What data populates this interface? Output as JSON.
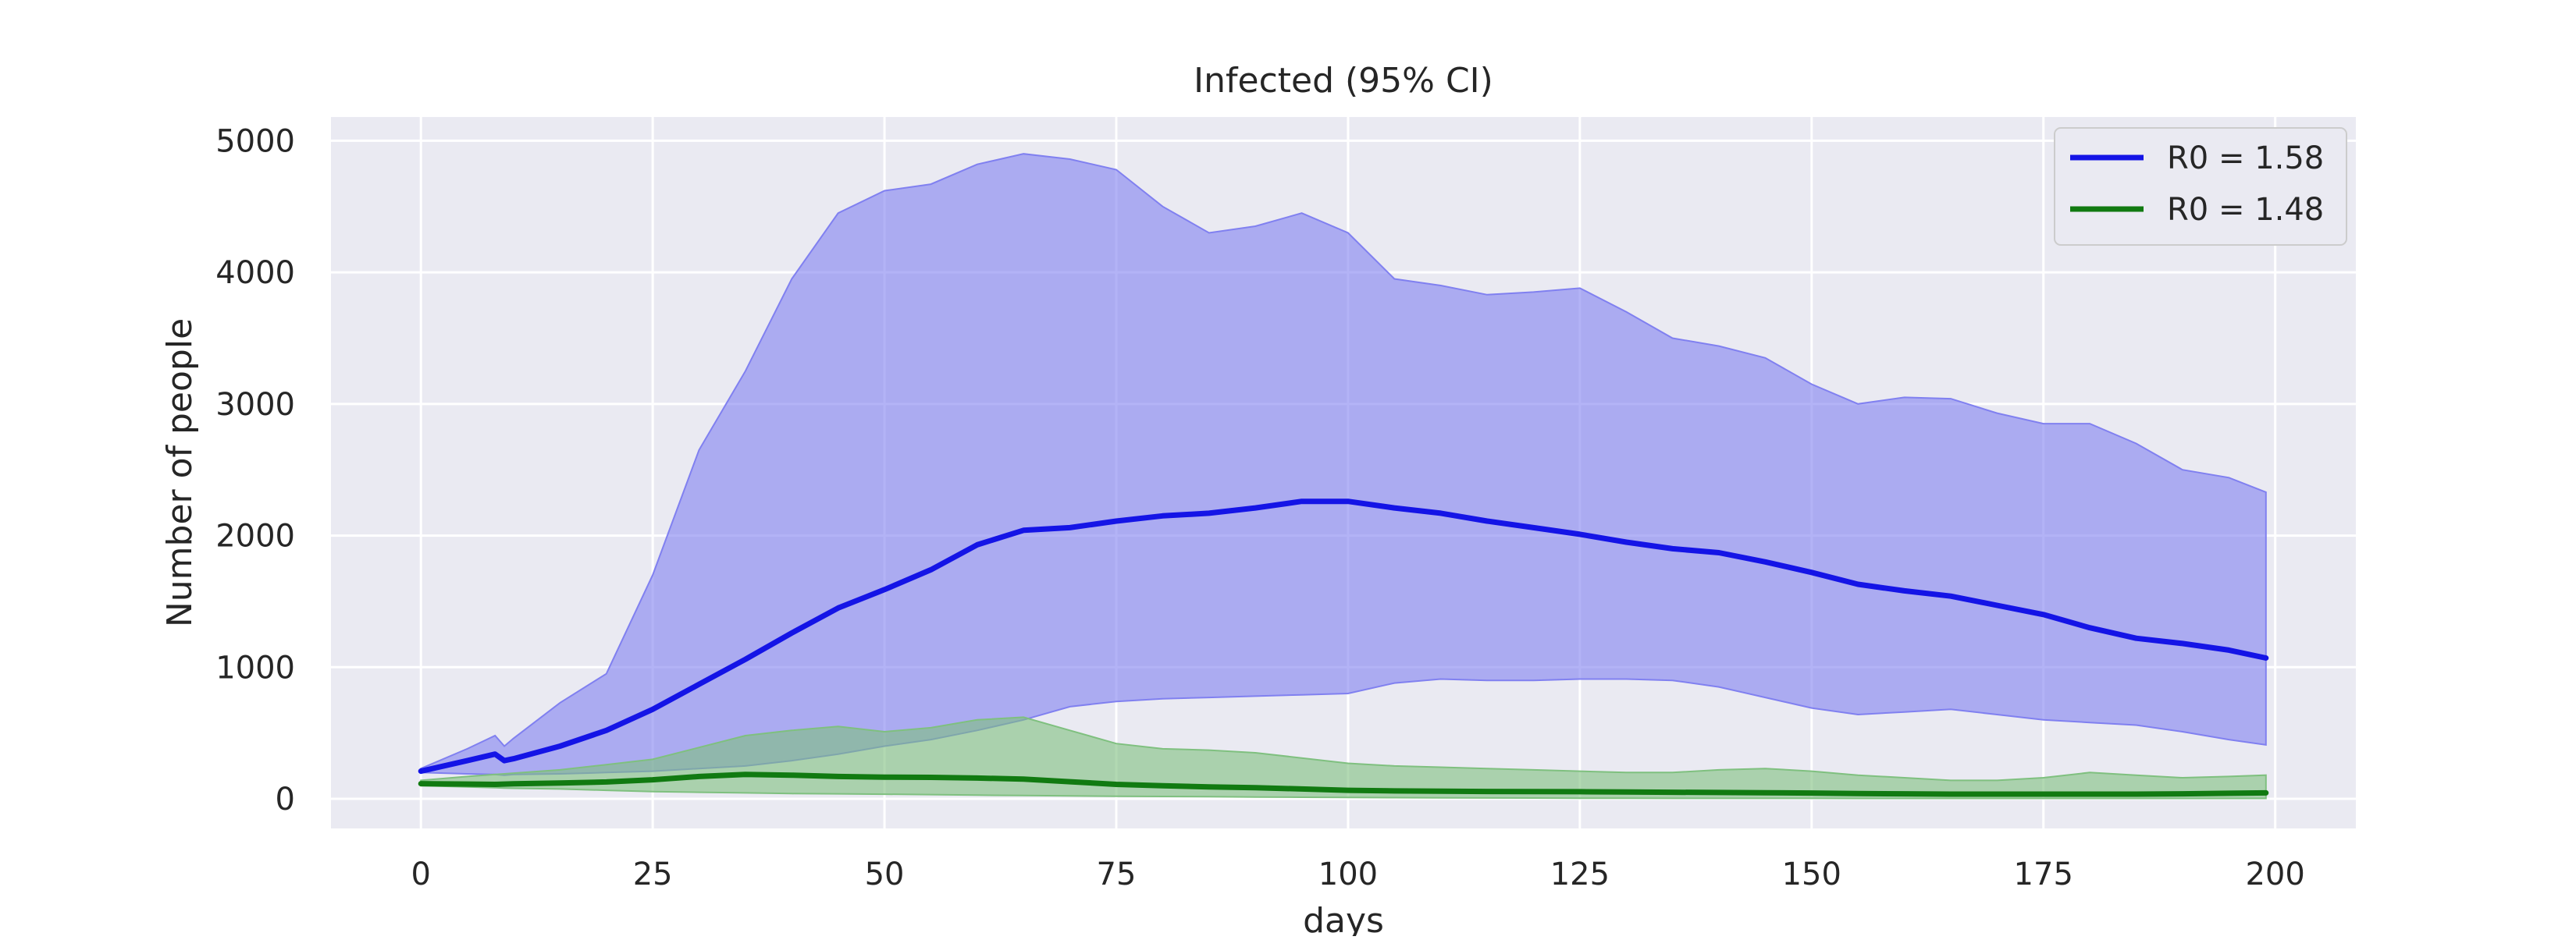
{
  "chart_data": {
    "type": "area",
    "title": "Infected (95% CI)",
    "xlabel": "days",
    "ylabel": "Number of people",
    "xlim": [
      -9.7,
      208.7
    ],
    "ylim": [
      -225,
      5180
    ],
    "xticks": [
      0,
      25,
      50,
      75,
      100,
      125,
      150,
      175,
      200
    ],
    "yticks": [
      0,
      1000,
      2000,
      3000,
      4000,
      5000
    ],
    "grid": true,
    "legend_position": "top-right",
    "background_color": "#eaeaf2",
    "grid_color": "#ffffff",
    "x": [
      0,
      5,
      8,
      9,
      10,
      15,
      20,
      25,
      30,
      35,
      40,
      45,
      50,
      55,
      60,
      65,
      70,
      75,
      80,
      85,
      90,
      95,
      100,
      105,
      110,
      115,
      120,
      125,
      130,
      135,
      140,
      145,
      150,
      155,
      160,
      165,
      170,
      175,
      180,
      185,
      190,
      195,
      199
    ],
    "series": [
      {
        "name": "R0 = 1.58",
        "color": "#1414e6",
        "fill_color": "#8080f0",
        "values": [
          210,
          290,
          340,
          290,
          305,
          400,
          520,
          680,
          870,
          1060,
          1260,
          1450,
          1590,
          1740,
          1930,
          2040,
          2060,
          2110,
          2150,
          2170,
          2210,
          2260,
          2260,
          2210,
          2170,
          2110,
          2060,
          2010,
          1950,
          1900,
          1870,
          1800,
          1720,
          1630,
          1580,
          1540,
          1470,
          1400,
          1300,
          1220,
          1180,
          1130,
          1070
        ],
        "ci_upper": [
          230,
          380,
          480,
          400,
          460,
          730,
          950,
          1700,
          2650,
          3250,
          3950,
          4450,
          4620,
          4670,
          4820,
          4900,
          4860,
          4780,
          4500,
          4300,
          4350,
          4450,
          4300,
          3950,
          3900,
          3830,
          3850,
          3880,
          3700,
          3500,
          3440,
          3350,
          3150,
          3000,
          3050,
          3040,
          2930,
          2850,
          2850,
          2700,
          2500,
          2440,
          2330
        ],
        "ci_lower": [
          200,
          190,
          185,
          180,
          185,
          190,
          200,
          210,
          230,
          250,
          290,
          340,
          400,
          450,
          520,
          600,
          700,
          740,
          760,
          770,
          780,
          790,
          800,
          880,
          910,
          900,
          900,
          910,
          910,
          900,
          850,
          770,
          690,
          640,
          660,
          680,
          640,
          600,
          580,
          560,
          510,
          450,
          410
        ]
      },
      {
        "name": "R0 = 1.48",
        "color": "#117a11",
        "fill_color": "#7fc07f",
        "values": [
          115,
          112,
          110,
          112,
          114,
          120,
          128,
          145,
          170,
          185,
          180,
          170,
          165,
          163,
          158,
          150,
          130,
          110,
          100,
          90,
          85,
          75,
          65,
          60,
          58,
          56,
          55,
          54,
          52,
          50,
          48,
          46,
          44,
          40,
          38,
          36,
          36,
          36,
          36,
          36,
          38,
          42,
          45
        ],
        "ci_upper": [
          140,
          170,
          185,
          190,
          195,
          220,
          260,
          300,
          390,
          480,
          520,
          550,
          510,
          540,
          600,
          620,
          520,
          420,
          380,
          370,
          350,
          310,
          270,
          250,
          240,
          230,
          220,
          210,
          200,
          200,
          220,
          230,
          210,
          180,
          160,
          140,
          140,
          160,
          200,
          180,
          160,
          170,
          180
        ],
        "ci_lower": [
          100,
          90,
          85,
          82,
          80,
          75,
          65,
          55,
          50,
          45,
          40,
          38,
          35,
          32,
          28,
          25,
          22,
          20,
          18,
          16,
          14,
          12,
          10,
          9,
          8,
          7,
          6,
          5,
          5,
          4,
          4,
          4,
          4,
          3,
          3,
          3,
          3,
          3,
          3,
          3,
          3,
          3,
          3
        ]
      }
    ]
  }
}
